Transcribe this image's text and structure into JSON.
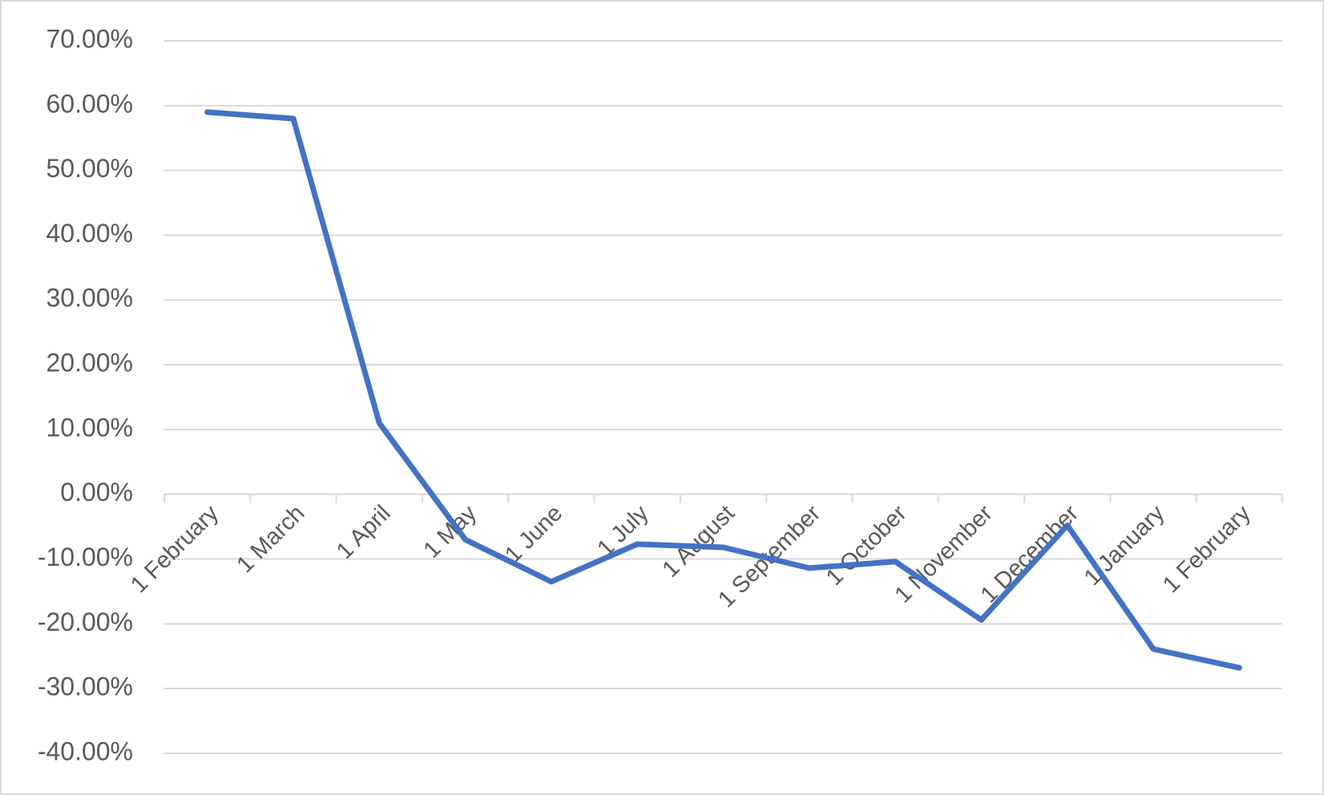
{
  "chart_data": {
    "type": "line",
    "categories": [
      "1 February",
      "1 March",
      "1 April",
      "1 May",
      "1 June",
      "1 July",
      "1 August",
      "1 September",
      "1 October",
      "1 November",
      "1 December",
      "1 January",
      "1 February"
    ],
    "series": [
      {
        "color": "#4472c4",
        "values": [
          59,
          58,
          11,
          -7,
          -13.5,
          -7.7,
          -8.2,
          -11.4,
          -10.4,
          -19.4,
          -4.8,
          -23.9,
          -26.8
        ]
      }
    ],
    "ylim": [
      -40,
      70
    ],
    "yticks": [
      {
        "value": -40,
        "label": "-40.00%"
      },
      {
        "value": -30,
        "label": "-30.00%"
      },
      {
        "value": -20,
        "label": "-20.00%"
      },
      {
        "value": -10,
        "label": "-10.00%"
      },
      {
        "value": 0,
        "label": "0.00%"
      },
      {
        "value": 10,
        "label": "10.00%"
      },
      {
        "value": 20,
        "label": "20.00%"
      },
      {
        "value": 30,
        "label": "30.00%"
      },
      {
        "value": 40,
        "label": "40.00%"
      },
      {
        "value": 50,
        "label": "50.00%"
      },
      {
        "value": 60,
        "label": "60.00%"
      },
      {
        "value": 70,
        "label": "70.00%"
      }
    ],
    "grid": true
  }
}
